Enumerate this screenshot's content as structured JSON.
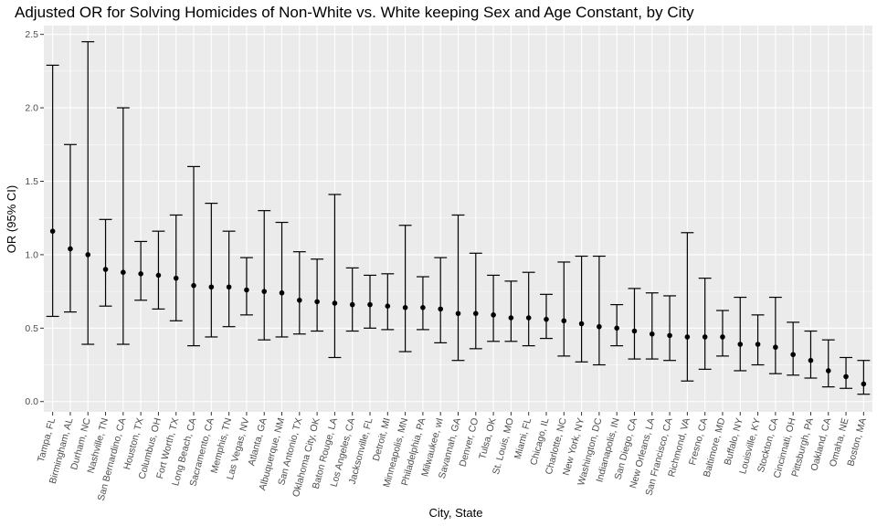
{
  "chart_data": {
    "type": "errorbar",
    "title": "Adjusted OR for Solving Homicides of Non-White vs. White keeping Sex and Age Constant, by City",
    "xlabel": "City, State",
    "ylabel": "OR (95% CI)",
    "ylim": [
      -0.07,
      2.56
    ],
    "y_ticks": [
      "0.0",
      "0.5",
      "1.0",
      "1.5",
      "2.0",
      "2.5"
    ],
    "grid": true,
    "background": "#ebebeb",
    "grid_color": "#ffffff",
    "point_color": "#000000",
    "categories": [
      "Tampa, FL",
      "Birmingham, AL",
      "Durham, NC",
      "Nashville, TN",
      "San Bernardino, CA",
      "Houston, TX",
      "Columbus, OH",
      "Fort Worth, TX",
      "Long Beach, CA",
      "Sacramento, CA",
      "Memphis, TN",
      "Las Vegas, NV",
      "Atlanta, GA",
      "Albuquerque, NM",
      "San Antonio, TX",
      "Oklahoma City, OK",
      "Baton Rouge, LA",
      "Los Angeles, CA",
      "Jacksonville, FL",
      "Detroit, MI",
      "Minneapolis, MN",
      "Philadelphia, PA",
      "Milwaukee, wI",
      "Savannah, GA",
      "Denver, CO",
      "Tulsa, OK",
      "St. Louis, MO",
      "Miami, FL",
      "Chicago, IL",
      "Charlotte, NC",
      "New York, NY",
      "Washington, DC",
      "Indianapolis, IN",
      "San Diego, CA",
      "New Orleans, LA",
      "San Francisco, CA",
      "Richmond, VA",
      "Fresno, CA",
      "Baltimore, MD",
      "Buffalo, NY",
      "Louisville, KY",
      "Stockton, CA",
      "Cincinnati, OH",
      "Pittsburgh, PA",
      "Oakland, CA",
      "Omaha, NE",
      "Boston, MA"
    ],
    "estimate": [
      1.16,
      1.04,
      1.0,
      0.9,
      0.88,
      0.87,
      0.86,
      0.84,
      0.79,
      0.78,
      0.78,
      0.76,
      0.75,
      0.74,
      0.69,
      0.68,
      0.67,
      0.66,
      0.66,
      0.65,
      0.64,
      0.64,
      0.63,
      0.6,
      0.6,
      0.59,
      0.57,
      0.57,
      0.56,
      0.55,
      0.53,
      0.51,
      0.5,
      0.48,
      0.46,
      0.45,
      0.44,
      0.44,
      0.44,
      0.39,
      0.39,
      0.37,
      0.32,
      0.28,
      0.21,
      0.17,
      0.12
    ],
    "ci_low": [
      0.58,
      0.61,
      0.39,
      0.65,
      0.39,
      0.69,
      0.63,
      0.55,
      0.38,
      0.44,
      0.51,
      0.59,
      0.42,
      0.44,
      0.46,
      0.48,
      0.3,
      0.48,
      0.5,
      0.49,
      0.34,
      0.49,
      0.4,
      0.28,
      0.36,
      0.41,
      0.41,
      0.38,
      0.43,
      0.31,
      0.27,
      0.25,
      0.38,
      0.29,
      0.29,
      0.28,
      0.14,
      0.22,
      0.31,
      0.21,
      0.25,
      0.19,
      0.18,
      0.16,
      0.1,
      0.09,
      0.05
    ],
    "ci_high": [
      2.29,
      1.75,
      2.45,
      1.24,
      2.0,
      1.09,
      1.16,
      1.27,
      1.6,
      1.35,
      1.16,
      0.98,
      1.3,
      1.22,
      1.02,
      0.97,
      1.41,
      0.91,
      0.86,
      0.87,
      1.2,
      0.85,
      0.98,
      1.27,
      1.01,
      0.86,
      0.82,
      0.88,
      0.73,
      0.95,
      0.99,
      0.99,
      0.66,
      0.77,
      0.74,
      0.72,
      1.15,
      0.84,
      0.62,
      0.71,
      0.59,
      0.71,
      0.54,
      0.48,
      0.42,
      0.3,
      0.28
    ]
  }
}
